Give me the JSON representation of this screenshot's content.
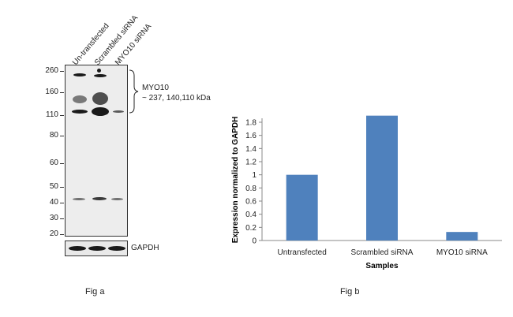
{
  "fig_a": {
    "caption": "Fig a",
    "lanes": [
      "Un-transfected",
      "Scrambled siRNA",
      "MYO10 siRNA"
    ],
    "mw_markers": [
      "260",
      "160",
      "110",
      "80",
      "60",
      "50",
      "40",
      "30",
      "20"
    ],
    "target_label": "MYO10",
    "target_size": "~ 237, 140,110 kDa",
    "loading_control": "GAPDH"
  },
  "fig_b": {
    "caption": "Fig b"
  },
  "chart_data": {
    "type": "bar",
    "categories": [
      "Untransfected",
      "Scrambled siRNA",
      "MYO10 siRNA"
    ],
    "values": [
      1.0,
      1.9,
      0.13
    ],
    "xlabel": "Samples",
    "ylabel": "Expression  normalized to GAPDH",
    "ylim": [
      0,
      1.8
    ],
    "yticks": [
      "0",
      "0.2",
      "0.4",
      "0.6",
      "0.8",
      "1",
      "1.2",
      "1.4",
      "1.6",
      "1.8"
    ],
    "bar_color": "#4f81bd",
    "grid": false,
    "legend": "none"
  }
}
